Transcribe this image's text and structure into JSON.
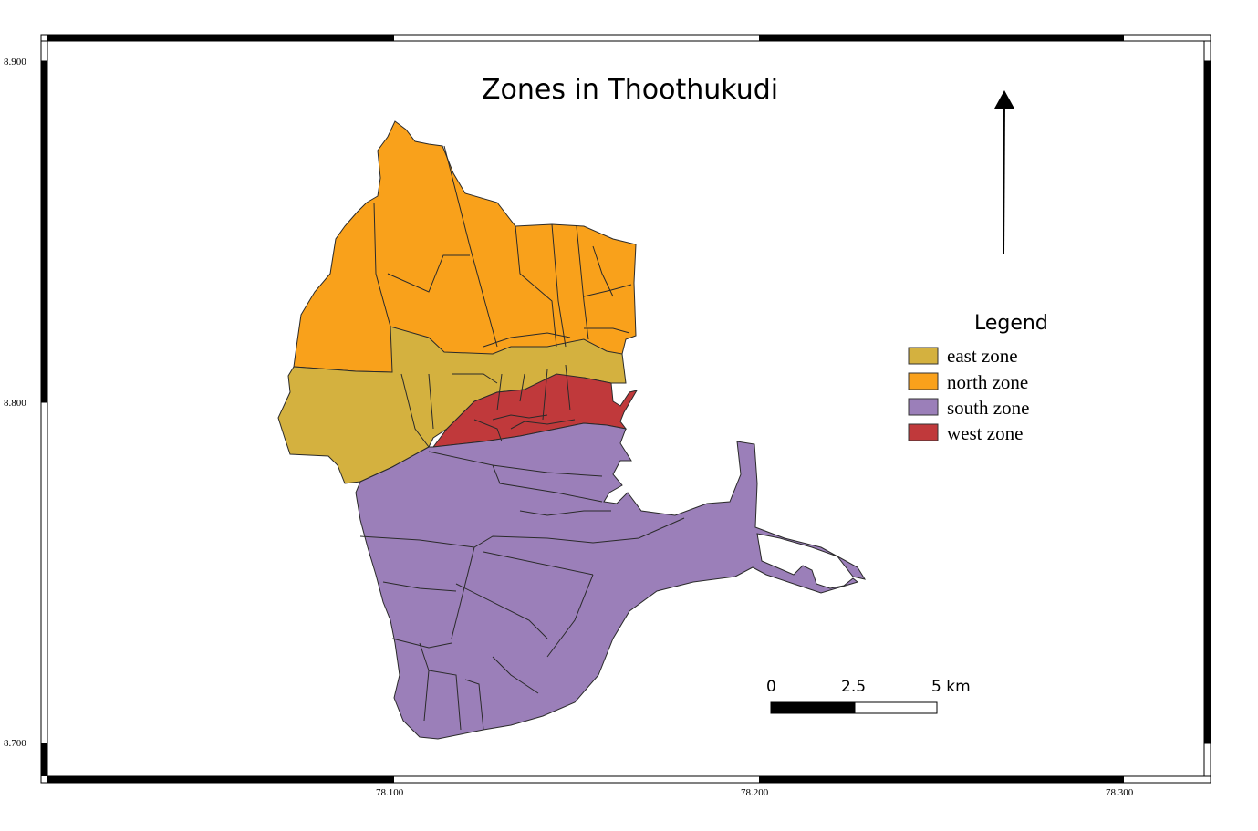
{
  "title": "Zones in Thoothukudi",
  "axes": {
    "lat_ticks": [
      "8.900",
      "8.800",
      "8.700"
    ],
    "lon_ticks": [
      "78.100",
      "78.200",
      "78.300"
    ]
  },
  "legend": {
    "title": "Legend",
    "items": [
      {
        "label": "east zone",
        "color": "#d4b13f"
      },
      {
        "label": "north zone",
        "color": "#f9a11b"
      },
      {
        "label": "south zone",
        "color": "#9b7fb9"
      },
      {
        "label": "west zone",
        "color": "#c0393b"
      }
    ]
  },
  "scale_bar": {
    "labels": [
      "0",
      "2.5",
      "5 km"
    ]
  },
  "north_arrow": {
    "icon": "north-arrow-icon"
  }
}
